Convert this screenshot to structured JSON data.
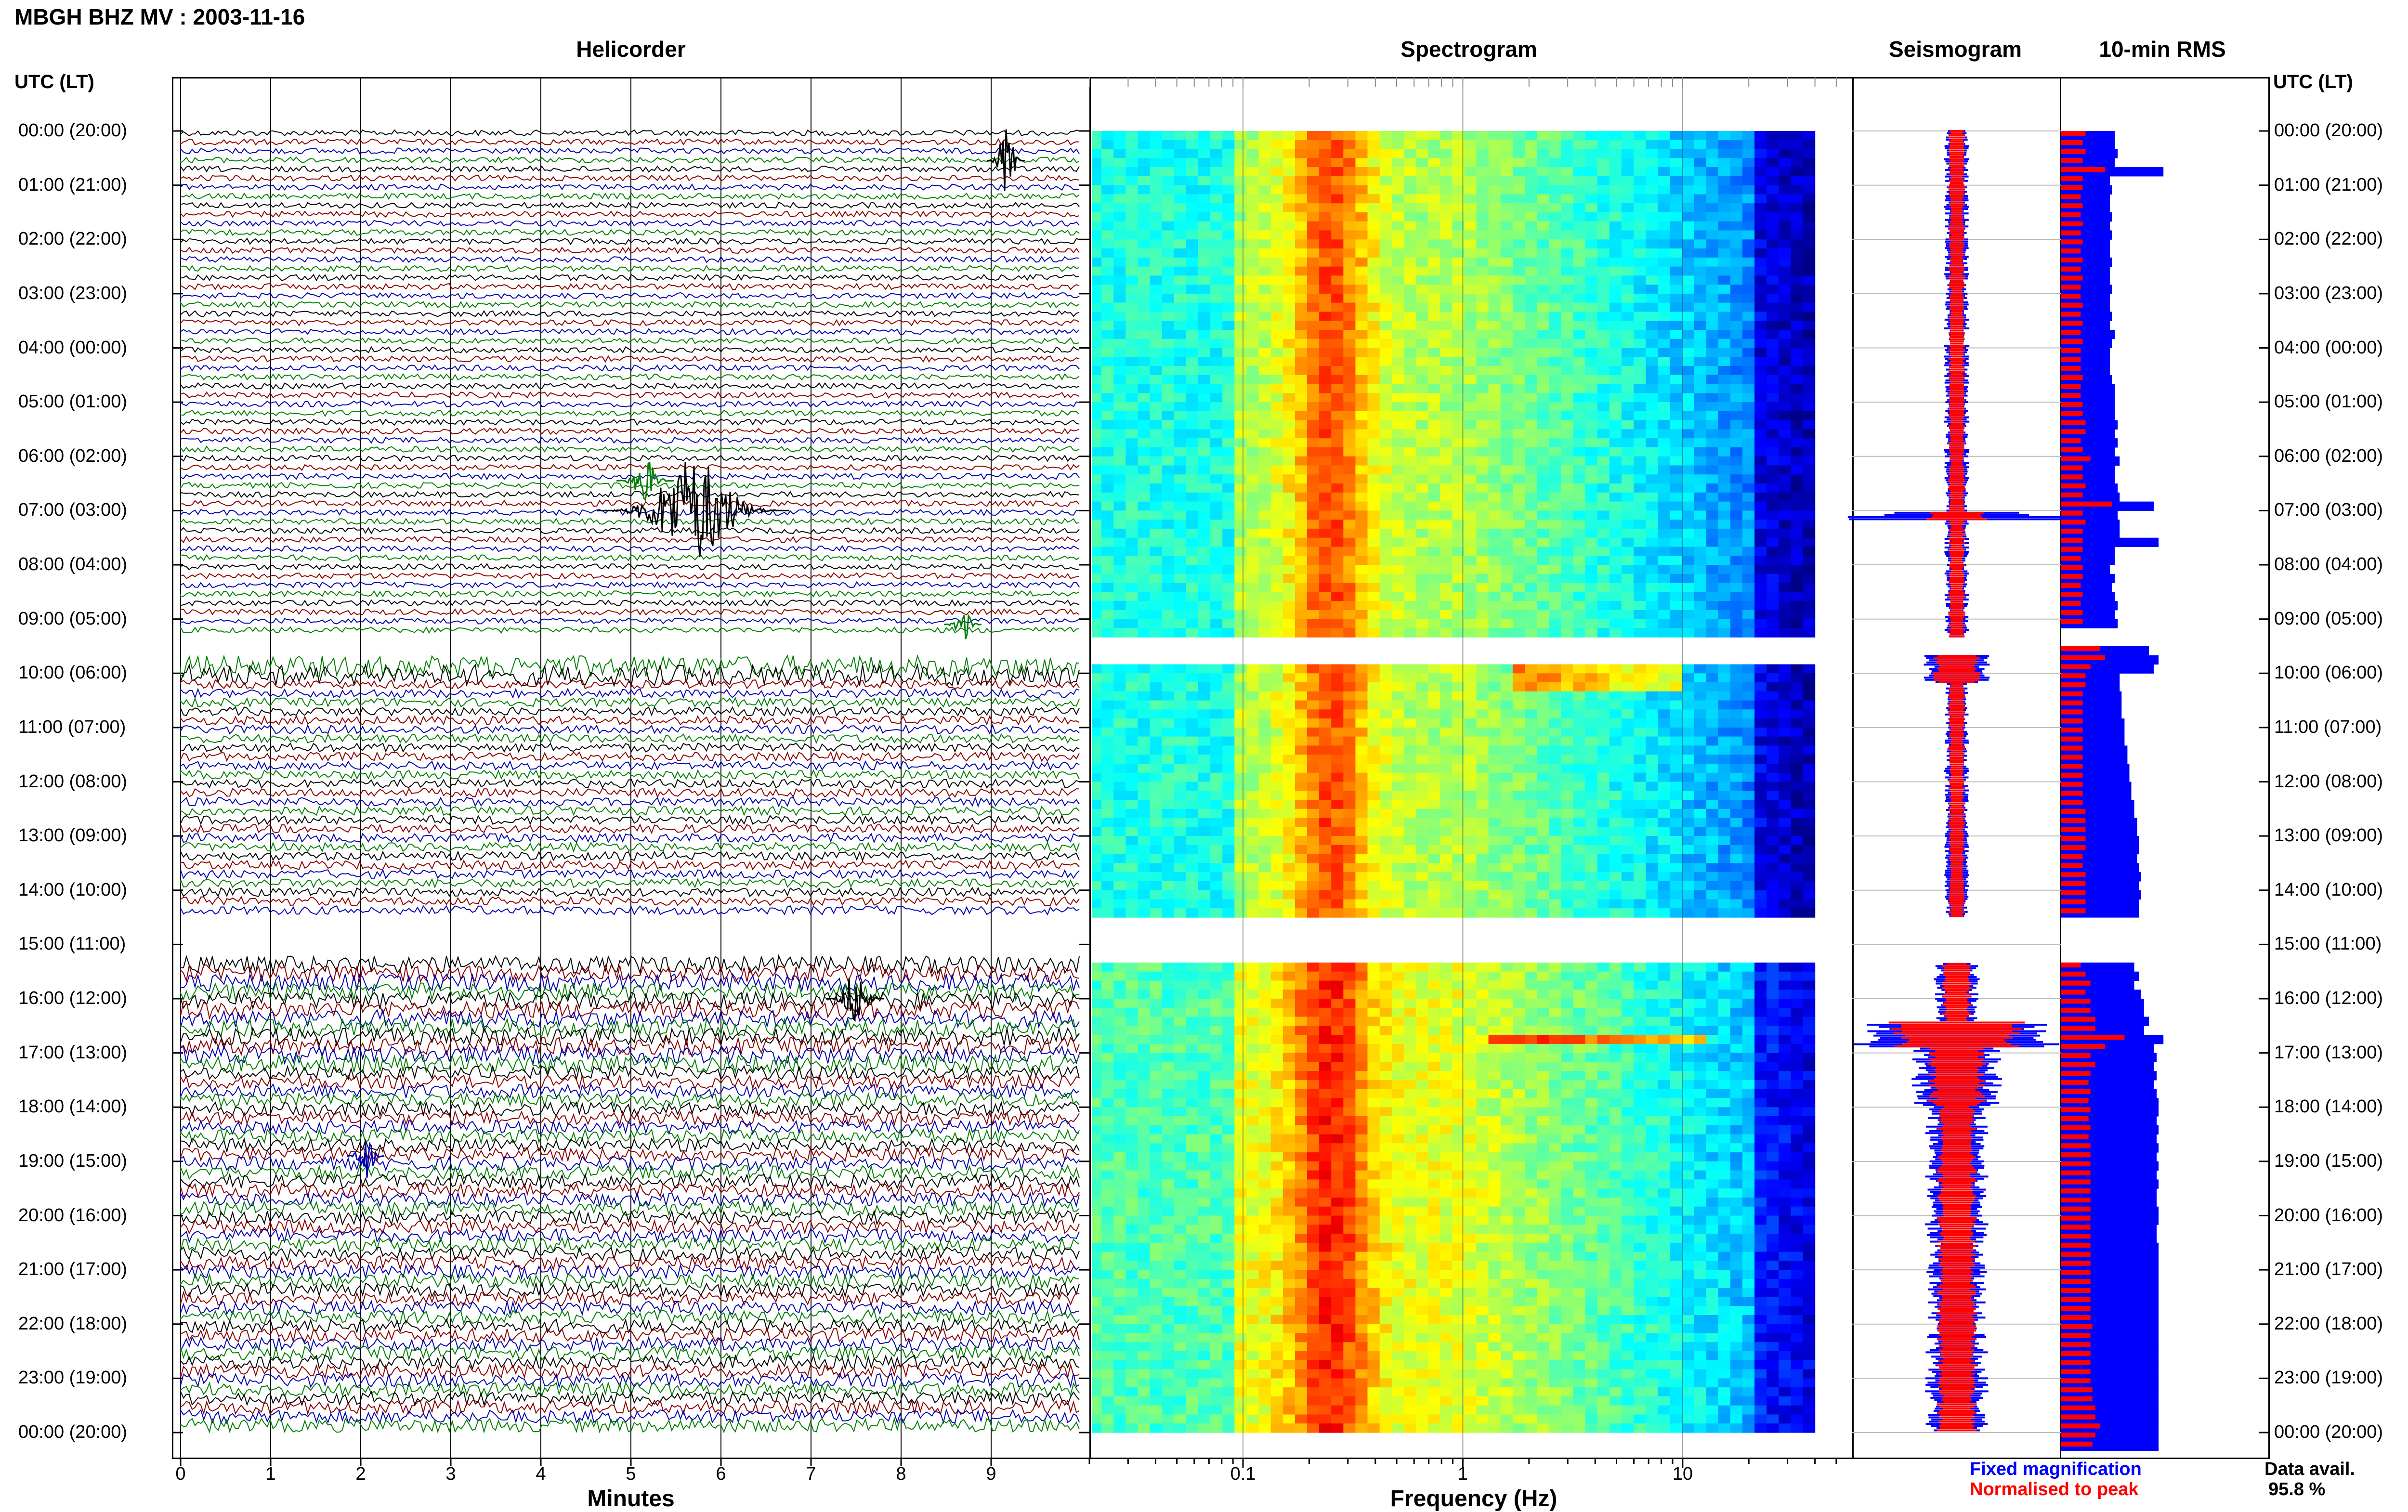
{
  "header": {
    "title": "MBGH BHZ MV : 2003-11-16"
  },
  "panels": {
    "helicorder": "Helicorder",
    "spectrogram": "Spectrogram",
    "seismogram": "Seismogram",
    "rms": "10-min RMS"
  },
  "time_axis": {
    "heading": "UTC (LT)",
    "labels": [
      "00:00 (20:00)",
      "01:00 (21:00)",
      "02:00 (22:00)",
      "03:00 (23:00)",
      "04:00 (00:00)",
      "05:00 (01:00)",
      "06:00 (02:00)",
      "07:00 (03:00)",
      "08:00 (04:00)",
      "09:00 (05:00)",
      "10:00 (06:00)",
      "11:00 (07:00)",
      "12:00 (08:00)",
      "13:00 (09:00)",
      "14:00 (10:00)",
      "15:00 (11:00)",
      "16:00 (12:00)",
      "17:00 (13:00)",
      "18:00 (14:00)",
      "19:00 (15:00)",
      "20:00 (16:00)",
      "21:00 (17:00)",
      "22:00 (18:00)",
      "23:00 (19:00)",
      "00:00 (20:00)"
    ]
  },
  "helicorder_axis": {
    "xlabel": "Minutes",
    "ticks": [
      "0",
      "1",
      "2",
      "3",
      "4",
      "5",
      "6",
      "7",
      "8",
      "9"
    ]
  },
  "spectrogram_axis": {
    "xlabel": "Frequency (Hz)",
    "ticks": [
      "0.1",
      "1",
      "10"
    ]
  },
  "legend": {
    "fixed": "Fixed magnification",
    "normalised": "Normalised to peak",
    "fixed_color": "#0000ff",
    "normalised_color": "#ff0000"
  },
  "availability": {
    "label": "Data avail.",
    "value": "95.8 %"
  },
  "colors": {
    "trace1": "#000000",
    "trace2": "#8b0000",
    "trace3": "#0000b0",
    "trace4": "#008000"
  },
  "chart_data": {
    "type": "heatmap",
    "description_series": [
      {
        "name": "Fixed magnification",
        "color": "#0000ff"
      },
      {
        "name": "Normalised to peak",
        "color": "#ff0000"
      }
    ],
    "time_range_hours": [
      0,
      24
    ],
    "gap_hours": [
      [
        9.33,
        9.67
      ],
      [
        14.5,
        15.33
      ]
    ],
    "spectrogram_frequency_range_hz": [
      0.02,
      40
    ],
    "rms_fixed": [
      0.55,
      0.55,
      0.58,
      0.55,
      1.05,
      0.5,
      0.52,
      0.5,
      0.5,
      0.52,
      0.5,
      0.52,
      0.5,
      0.5,
      0.52,
      0.5,
      0.5,
      0.52,
      0.5,
      0.5,
      0.52,
      0.5,
      0.55,
      0.52,
      0.5,
      0.5,
      0.5,
      0.52,
      0.55,
      0.55,
      0.55,
      0.55,
      0.58,
      0.55,
      0.58,
      0.55,
      0.6,
      0.55,
      0.55,
      0.58,
      0.6,
      0.95,
      0.58,
      0.6,
      0.6,
      1.0,
      0.55,
      0.55,
      0.5,
      0.55,
      0.52,
      0.55,
      0.58,
      0.55,
      0.58,
      null,
      null,
      0.9,
      1.0,
      0.95,
      0.6,
      0.6,
      0.62,
      0.62,
      0.62,
      0.65,
      0.65,
      0.65,
      0.68,
      0.68,
      0.7,
      0.7,
      0.72,
      0.72,
      0.75,
      0.75,
      0.78,
      0.78,
      0.8,
      0.8,
      0.78,
      0.8,
      0.82,
      0.8,
      0.82,
      0.8,
      0.8,
      null,
      null,
      null,
      null,
      null,
      0.75,
      0.8,
      0.75,
      0.82,
      0.85,
      0.85,
      0.9,
      0.85,
      1.05,
      0.95,
      0.98,
      0.95,
      0.98,
      0.95,
      0.98,
      1.0,
      1.0,
      0.98,
      1.0,
      0.98,
      1.0,
      0.98,
      1.0,
      0.98,
      1.0,
      0.98,
      0.98,
      1.0,
      1.0,
      0.98,
      0.98,
      1.0,
      1.0,
      1.0,
      1.0,
      1.0,
      1.0,
      1.0,
      1.0,
      1.0,
      1.0,
      1.0,
      1.0,
      1.0,
      1.0,
      1.0,
      1.0,
      1.0,
      1.0,
      1.0,
      1.0,
      1.0,
      1.0,
      1.0
    ],
    "rms_normalised": [
      0.25,
      0.22,
      0.25,
      0.22,
      0.45,
      0.22,
      0.22,
      0.2,
      0.22,
      0.2,
      0.22,
      0.2,
      0.22,
      0.2,
      0.22,
      0.2,
      0.22,
      0.2,
      0.2,
      0.22,
      0.2,
      0.22,
      0.2,
      0.22,
      0.2,
      0.2,
      0.2,
      0.22,
      0.2,
      0.2,
      0.22,
      0.22,
      0.25,
      0.25,
      0.2,
      0.22,
      0.3,
      0.22,
      0.22,
      0.25,
      0.22,
      0.52,
      0.22,
      0.25,
      0.22,
      0.22,
      0.22,
      0.2,
      0.22,
      0.22,
      0.2,
      0.22,
      0.2,
      0.22,
      0.22,
      null,
      null,
      0.4,
      0.45,
      0.3,
      0.25,
      0.25,
      0.22,
      0.22,
      0.22,
      0.22,
      0.22,
      0.22,
      0.22,
      0.22,
      0.22,
      0.22,
      0.22,
      0.22,
      0.22,
      0.25,
      0.25,
      0.25,
      0.25,
      0.25,
      0.22,
      0.22,
      0.25,
      0.25,
      0.25,
      0.25,
      0.25,
      null,
      null,
      null,
      null,
      null,
      0.2,
      0.25,
      0.3,
      0.25,
      0.3,
      0.3,
      0.35,
      0.35,
      0.65,
      0.45,
      0.3,
      0.35,
      0.3,
      0.28,
      0.3,
      0.28,
      0.3,
      0.28,
      0.3,
      0.28,
      0.3,
      0.3,
      0.3,
      0.3,
      0.3,
      0.3,
      0.3,
      0.3,
      0.3,
      0.3,
      0.3,
      0.3,
      0.3,
      0.3,
      0.3,
      0.3,
      0.3,
      0.3,
      0.3,
      0.3,
      0.32,
      0.3,
      0.3,
      0.3,
      0.3,
      0.3,
      0.3,
      0.32,
      0.32,
      0.35,
      0.35,
      0.4,
      0.35,
      0.32
    ]
  }
}
